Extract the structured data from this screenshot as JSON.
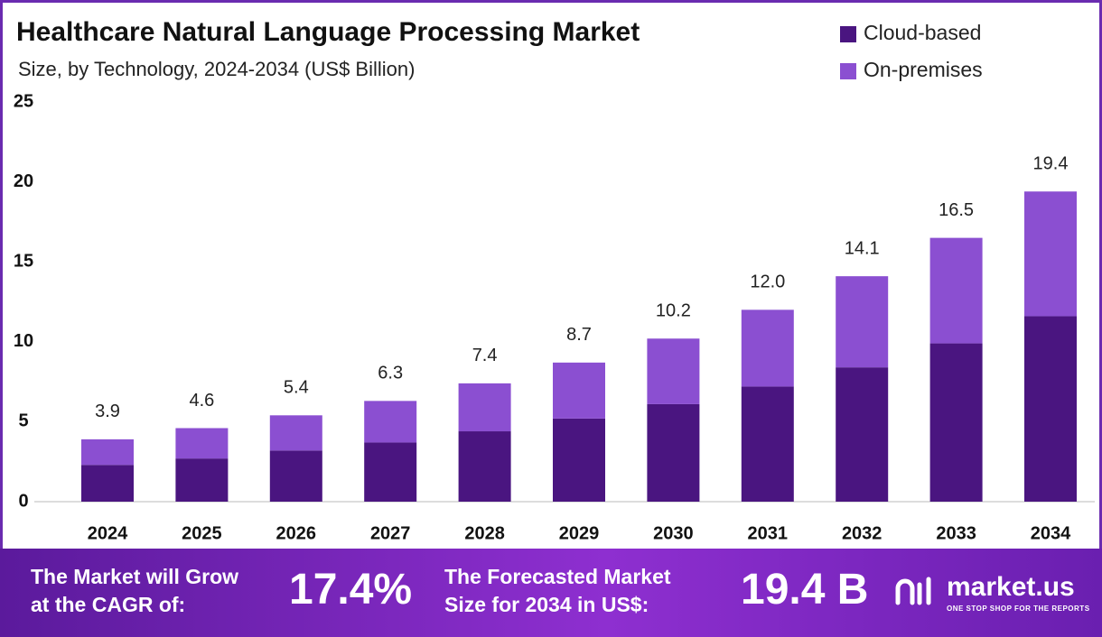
{
  "chart_data": {
    "type": "bar",
    "stacked": true,
    "title": "Healthcare Natural Language Processing Market",
    "subtitle": "Size, by Technology, 2024-2034 (US$ Billion)",
    "categories": [
      "2024",
      "2025",
      "2026",
      "2027",
      "2028",
      "2029",
      "2030",
      "2031",
      "2032",
      "2033",
      "2034"
    ],
    "series": [
      {
        "name": "Cloud-based",
        "color": "#4a1580",
        "values": [
          2.3,
          2.7,
          3.2,
          3.7,
          4.4,
          5.2,
          6.1,
          7.2,
          8.4,
          9.9,
          11.6
        ]
      },
      {
        "name": "On-premises",
        "color": "#8b4fd1",
        "values": [
          1.6,
          1.9,
          2.2,
          2.6,
          3.0,
          3.5,
          4.1,
          4.8,
          5.7,
          6.6,
          7.8
        ]
      }
    ],
    "totals": {
      "values": [
        3.9,
        4.6,
        5.4,
        6.3,
        7.4,
        8.7,
        10.2,
        12.0,
        14.1,
        16.5,
        19.4
      ],
      "value_labels": [
        "3.9",
        "4.6",
        "5.4",
        "6.3",
        "7.4",
        "8.7",
        "10.2",
        "12.0",
        "14.1",
        "16.5",
        "19.4"
      ]
    },
    "ylim": [
      0,
      25
    ],
    "yticks": [
      0,
      5,
      10,
      15,
      20,
      25
    ],
    "grid": false,
    "legend": "top-right"
  },
  "footer": {
    "cagr_label": [
      "The Market will Grow",
      "at the CAGR of:"
    ],
    "cagr_value": "17.4%",
    "forecast_label": [
      "The Forecasted Market",
      "Size for 2034 in US$:"
    ],
    "forecast_value": "19.4 B",
    "logo": "market.us",
    "tagline": "ONE STOP SHOP FOR THE REPORTS"
  }
}
